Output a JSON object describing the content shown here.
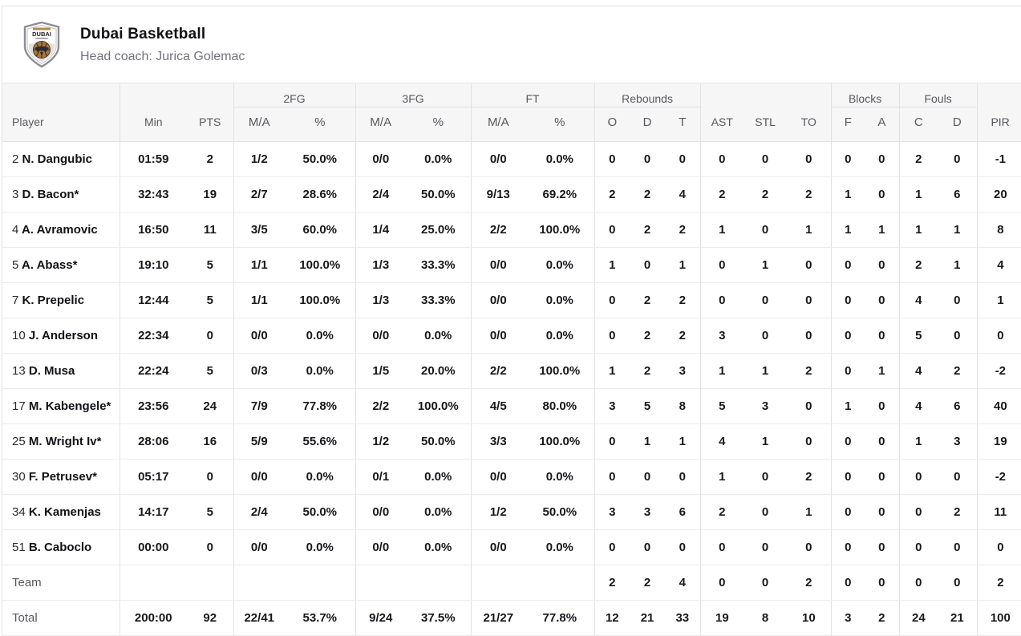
{
  "team": {
    "name": "Dubai Basketball",
    "coach": "Head coach: Jurica Golemac",
    "logo_icon": "shield-basketball-logo"
  },
  "colors": {
    "header_bg": "#f6f6f6",
    "border": "#e2e2e2",
    "text": "#17171c",
    "muted_text": "#58585f",
    "logo_ball": "#a8763e",
    "logo_shield": "#8d8d93"
  },
  "table": {
    "header": {
      "player": "Player",
      "min": "Min",
      "pts": "PTS",
      "ma": "M/A",
      "pct": "%",
      "reb_o": "O",
      "reb_d": "D",
      "reb_t": "T",
      "ast": "AST",
      "stl": "STL",
      "to": "TO",
      "blk_f": "F",
      "blk_a": "A",
      "foul_c": "C",
      "foul_d": "D",
      "pir": "PIR",
      "groups": {
        "fg2": "2FG",
        "fg3": "3FG",
        "ft": "FT",
        "rebounds": "Rebounds",
        "blocks": "Blocks",
        "fouls": "Fouls"
      }
    },
    "rows": [
      {
        "num": "2",
        "name": "N. Dangubic",
        "min": "01:59",
        "pts": "2",
        "fg2_ma": "1/2",
        "fg2_pct": "50.0%",
        "fg3_ma": "0/0",
        "fg3_pct": "0.0%",
        "ft_ma": "0/0",
        "ft_pct": "0.0%",
        "reb_o": "0",
        "reb_d": "0",
        "reb_t": "0",
        "ast": "0",
        "stl": "0",
        "to": "0",
        "blk_f": "0",
        "blk_a": "0",
        "foul_c": "2",
        "foul_d": "0",
        "pir": "-1"
      },
      {
        "num": "3",
        "name": "D. Bacon*",
        "min": "32:43",
        "pts": "19",
        "fg2_ma": "2/7",
        "fg2_pct": "28.6%",
        "fg3_ma": "2/4",
        "fg3_pct": "50.0%",
        "ft_ma": "9/13",
        "ft_pct": "69.2%",
        "reb_o": "2",
        "reb_d": "2",
        "reb_t": "4",
        "ast": "2",
        "stl": "2",
        "to": "2",
        "blk_f": "1",
        "blk_a": "0",
        "foul_c": "1",
        "foul_d": "6",
        "pir": "20"
      },
      {
        "num": "4",
        "name": "A. Avramovic",
        "min": "16:50",
        "pts": "11",
        "fg2_ma": "3/5",
        "fg2_pct": "60.0%",
        "fg3_ma": "1/4",
        "fg3_pct": "25.0%",
        "ft_ma": "2/2",
        "ft_pct": "100.0%",
        "reb_o": "0",
        "reb_d": "2",
        "reb_t": "2",
        "ast": "1",
        "stl": "0",
        "to": "1",
        "blk_f": "1",
        "blk_a": "1",
        "foul_c": "1",
        "foul_d": "1",
        "pir": "8"
      },
      {
        "num": "5",
        "name": "A. Abass*",
        "min": "19:10",
        "pts": "5",
        "fg2_ma": "1/1",
        "fg2_pct": "100.0%",
        "fg3_ma": "1/3",
        "fg3_pct": "33.3%",
        "ft_ma": "0/0",
        "ft_pct": "0.0%",
        "reb_o": "1",
        "reb_d": "0",
        "reb_t": "1",
        "ast": "0",
        "stl": "1",
        "to": "0",
        "blk_f": "0",
        "blk_a": "0",
        "foul_c": "2",
        "foul_d": "1",
        "pir": "4"
      },
      {
        "num": "7",
        "name": "K. Prepelic",
        "min": "12:44",
        "pts": "5",
        "fg2_ma": "1/1",
        "fg2_pct": "100.0%",
        "fg3_ma": "1/3",
        "fg3_pct": "33.3%",
        "ft_ma": "0/0",
        "ft_pct": "0.0%",
        "reb_o": "0",
        "reb_d": "2",
        "reb_t": "2",
        "ast": "0",
        "stl": "0",
        "to": "0",
        "blk_f": "0",
        "blk_a": "0",
        "foul_c": "4",
        "foul_d": "0",
        "pir": "1"
      },
      {
        "num": "10",
        "name": "J. Anderson",
        "min": "22:34",
        "pts": "0",
        "fg2_ma": "0/0",
        "fg2_pct": "0.0%",
        "fg3_ma": "0/0",
        "fg3_pct": "0.0%",
        "ft_ma": "0/0",
        "ft_pct": "0.0%",
        "reb_o": "0",
        "reb_d": "2",
        "reb_t": "2",
        "ast": "3",
        "stl": "0",
        "to": "0",
        "blk_f": "0",
        "blk_a": "0",
        "foul_c": "5",
        "foul_d": "0",
        "pir": "0"
      },
      {
        "num": "13",
        "name": "D. Musa",
        "min": "22:24",
        "pts": "5",
        "fg2_ma": "0/3",
        "fg2_pct": "0.0%",
        "fg3_ma": "1/5",
        "fg3_pct": "20.0%",
        "ft_ma": "2/2",
        "ft_pct": "100.0%",
        "reb_o": "1",
        "reb_d": "2",
        "reb_t": "3",
        "ast": "1",
        "stl": "1",
        "to": "2",
        "blk_f": "0",
        "blk_a": "1",
        "foul_c": "4",
        "foul_d": "2",
        "pir": "-2"
      },
      {
        "num": "17",
        "name": "M. Kabengele*",
        "min": "23:56",
        "pts": "24",
        "fg2_ma": "7/9",
        "fg2_pct": "77.8%",
        "fg3_ma": "2/2",
        "fg3_pct": "100.0%",
        "ft_ma": "4/5",
        "ft_pct": "80.0%",
        "reb_o": "3",
        "reb_d": "5",
        "reb_t": "8",
        "ast": "5",
        "stl": "3",
        "to": "0",
        "blk_f": "1",
        "blk_a": "0",
        "foul_c": "4",
        "foul_d": "6",
        "pir": "40"
      },
      {
        "num": "25",
        "name": "M. Wright Iv*",
        "min": "28:06",
        "pts": "16",
        "fg2_ma": "5/9",
        "fg2_pct": "55.6%",
        "fg3_ma": "1/2",
        "fg3_pct": "50.0%",
        "ft_ma": "3/3",
        "ft_pct": "100.0%",
        "reb_o": "0",
        "reb_d": "1",
        "reb_t": "1",
        "ast": "4",
        "stl": "1",
        "to": "0",
        "blk_f": "0",
        "blk_a": "0",
        "foul_c": "1",
        "foul_d": "3",
        "pir": "19"
      },
      {
        "num": "30",
        "name": "F. Petrusev*",
        "min": "05:17",
        "pts": "0",
        "fg2_ma": "0/0",
        "fg2_pct": "0.0%",
        "fg3_ma": "0/1",
        "fg3_pct": "0.0%",
        "ft_ma": "0/0",
        "ft_pct": "0.0%",
        "reb_o": "0",
        "reb_d": "0",
        "reb_t": "0",
        "ast": "1",
        "stl": "0",
        "to": "2",
        "blk_f": "0",
        "blk_a": "0",
        "foul_c": "0",
        "foul_d": "0",
        "pir": "-2"
      },
      {
        "num": "34",
        "name": "K. Kamenjas",
        "min": "14:17",
        "pts": "5",
        "fg2_ma": "2/4",
        "fg2_pct": "50.0%",
        "fg3_ma": "0/0",
        "fg3_pct": "0.0%",
        "ft_ma": "1/2",
        "ft_pct": "50.0%",
        "reb_o": "3",
        "reb_d": "3",
        "reb_t": "6",
        "ast": "2",
        "stl": "0",
        "to": "1",
        "blk_f": "0",
        "blk_a": "0",
        "foul_c": "0",
        "foul_d": "2",
        "pir": "11"
      },
      {
        "num": "51",
        "name": "B. Caboclo",
        "min": "00:00",
        "pts": "0",
        "fg2_ma": "0/0",
        "fg2_pct": "0.0%",
        "fg3_ma": "0/0",
        "fg3_pct": "0.0%",
        "ft_ma": "0/0",
        "ft_pct": "0.0%",
        "reb_o": "0",
        "reb_d": "0",
        "reb_t": "0",
        "ast": "0",
        "stl": "0",
        "to": "0",
        "blk_f": "0",
        "blk_a": "0",
        "foul_c": "0",
        "foul_d": "0",
        "pir": "0"
      }
    ],
    "team_row": {
      "label": "Team",
      "reb_o": "2",
      "reb_d": "2",
      "reb_t": "4",
      "ast": "0",
      "stl": "0",
      "to": "2",
      "blk_f": "0",
      "blk_a": "0",
      "foul_c": "0",
      "foul_d": "0",
      "pir": "2"
    },
    "total_row": {
      "label": "Total",
      "min": "200:00",
      "pts": "92",
      "fg2_ma": "22/41",
      "fg2_pct": "53.7%",
      "fg3_ma": "9/24",
      "fg3_pct": "37.5%",
      "ft_ma": "21/27",
      "ft_pct": "77.8%",
      "reb_o": "12",
      "reb_d": "21",
      "reb_t": "33",
      "ast": "19",
      "stl": "8",
      "to": "10",
      "blk_f": "3",
      "blk_a": "2",
      "foul_c": "24",
      "foul_d": "21",
      "pir": "100"
    }
  }
}
